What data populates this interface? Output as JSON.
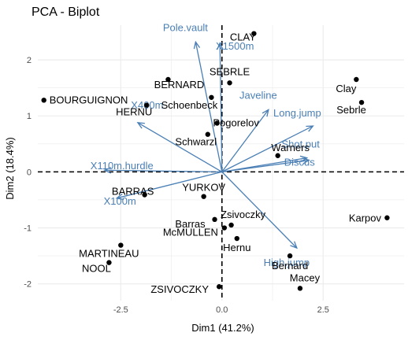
{
  "chart_data": {
    "type": "scatter",
    "subtype": "pca-biplot",
    "title": "PCA - Biplot",
    "xlabel": "Dim1 (41.2%)",
    "ylabel": "Dim2 (18.4%)",
    "xlim": [
      -4.55,
      4.5
    ],
    "ylim": [
      -2.3,
      2.62
    ],
    "xticks": [
      -2.5,
      0.0,
      2.5
    ],
    "xtick_labels": [
      "-2.5",
      "0.0",
      "2.5"
    ],
    "yticks": [
      -2,
      -1,
      0,
      1,
      2
    ],
    "ytick_labels": [
      "-2",
      "-1",
      "0",
      "1",
      "2"
    ],
    "grid": true,
    "reference_lines": "dashed lines at x = 0 and y = 0",
    "colors": {
      "individuals": "#000000",
      "variables": "#4a7fb5",
      "grid": "#ebebeb"
    },
    "individuals": [
      {
        "name": "SEBRLE",
        "x": 0.19,
        "y": 1.59
      },
      {
        "name": "CLAY",
        "x": 0.79,
        "y": 2.47
      },
      {
        "name": "BERNARD",
        "x": -1.33,
        "y": 1.65
      },
      {
        "name": "YURKOV",
        "x": -0.45,
        "y": -0.44
      },
      {
        "name": "ZSIVOCZKY",
        "x": -0.07,
        "y": -2.05
      },
      {
        "name": "McMULLEN",
        "x": 0.06,
        "y": -1.0
      },
      {
        "name": "MARTINEAU",
        "x": -2.5,
        "y": -1.31
      },
      {
        "name": "HERNU",
        "x": -1.86,
        "y": 1.19
      },
      {
        "name": "BARRAS",
        "x": -1.91,
        "y": -0.41
      },
      {
        "name": "NOOL",
        "x": -2.79,
        "y": -1.62
      },
      {
        "name": "BOURGUIGNON",
        "x": -4.4,
        "y": 1.28
      },
      {
        "name": "Sebrle",
        "x": 3.45,
        "y": 1.24
      },
      {
        "name": "Clay",
        "x": 3.32,
        "y": 1.65
      },
      {
        "name": "Karpov",
        "x": 4.08,
        "y": -0.82
      },
      {
        "name": "Macey",
        "x": 1.93,
        "y": -2.08
      },
      {
        "name": "Warners",
        "x": 1.38,
        "y": 0.29
      },
      {
        "name": "Zsivoczky",
        "x": 0.23,
        "y": -0.95
      },
      {
        "name": "Hernu",
        "x": 0.37,
        "y": -1.19
      },
      {
        "name": "Bernard",
        "x": 1.68,
        "y": -1.5
      },
      {
        "name": "Schwarzl",
        "x": -0.35,
        "y": 0.67
      },
      {
        "name": "Pogorelov",
        "x": -0.12,
        "y": 0.87
      },
      {
        "name": "Schoenbeck",
        "x": -0.26,
        "y": 1.33
      },
      {
        "name": "Barras",
        "x": -0.18,
        "y": -0.85
      }
    ],
    "variables": [
      {
        "name": "X100m",
        "x": -2.6,
        "y": -0.47
      },
      {
        "name": "Long.jump",
        "x": 2.25,
        "y": 0.82
      },
      {
        "name": "Shot.put",
        "x": 2.1,
        "y": 0.25
      },
      {
        "name": "High.jump",
        "x": 1.85,
        "y": -1.36
      },
      {
        "name": "X400m",
        "x": -2.08,
        "y": 0.88
      },
      {
        "name": "X110m.hurdle",
        "x": -2.9,
        "y": 0.03
      },
      {
        "name": "Discus",
        "x": 2.15,
        "y": 0.21
      },
      {
        "name": "Pole.vault",
        "x": -0.65,
        "y": 2.32
      },
      {
        "name": "Javeline",
        "x": 1.15,
        "y": 1.11
      },
      {
        "name": "X1500m",
        "x": -0.05,
        "y": 2.3
      }
    ]
  }
}
